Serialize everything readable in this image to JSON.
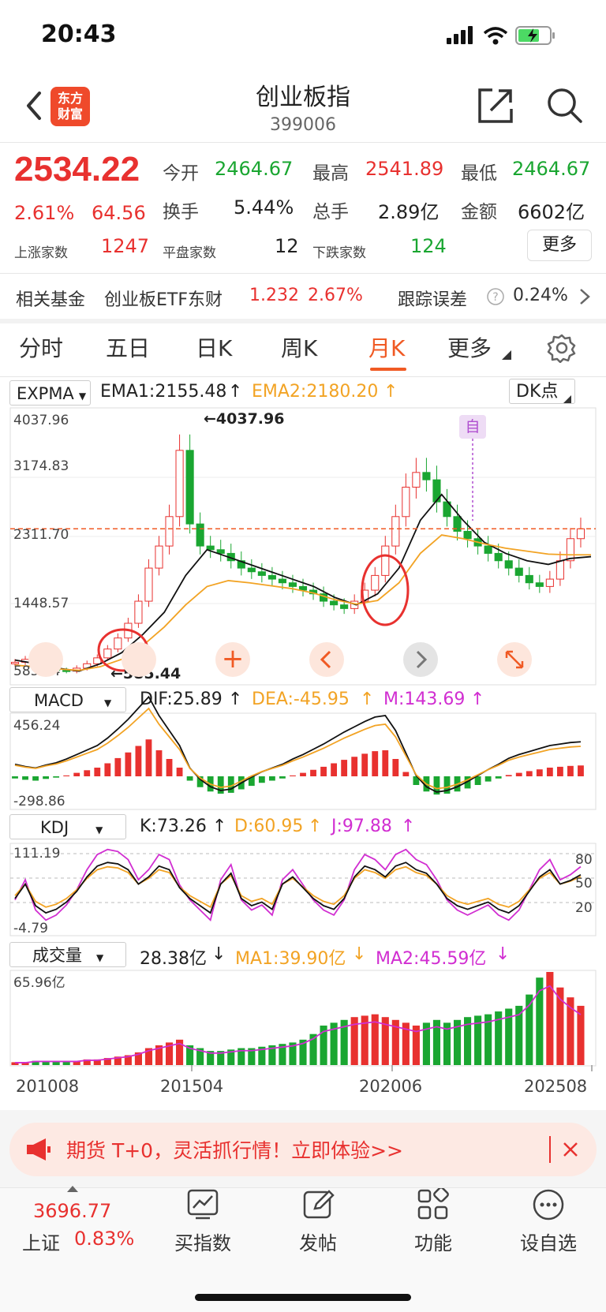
{
  "status_bar": {
    "time": "20:43"
  },
  "header": {
    "logo_line1": "东方",
    "logo_line2": "财富",
    "title": "创业板指",
    "code": "399006"
  },
  "quote": {
    "price": "2534.22",
    "change_pct": "2.61%",
    "change": "64.56",
    "open_label": "今开",
    "open": "2464.67",
    "high_label": "最高",
    "high": "2541.89",
    "low_label": "最低",
    "low": "2464.67",
    "turnover_label": "换手",
    "turnover": "5.44%",
    "volume_label": "总手",
    "volume": "2.89亿",
    "amount_label": "金额",
    "amount": "6602亿",
    "up_label": "上涨家数",
    "up_count": "1247",
    "flat_label": "平盘家数",
    "flat_count": "12",
    "down_label": "下跌家数",
    "down_count": "124",
    "more_button": "更多"
  },
  "fund_row": {
    "label": "相关基金",
    "fund_name": "创业板ETF东财",
    "fund_price": "1.232",
    "fund_pct": "2.67%",
    "tracking_label": "跟踪误差",
    "tracking_value": "0.24%"
  },
  "tabs": [
    "分时",
    "五日",
    "日K",
    "周K",
    "月K",
    "更多"
  ],
  "active_tab": "月K",
  "main_chart": {
    "indicator": "EXPMA",
    "ema1": "EMA1:2155.48",
    "ema2": "EMA2:2180.20",
    "dk_button": "DK点",
    "y_labels": [
      "4037.96",
      "3174.83",
      "2311.70",
      "1448.57",
      "585.44"
    ],
    "max_annotation": "4037.96",
    "min_annotation": "585.44",
    "self_tag": "自",
    "current_price_line": 2534.22
  },
  "macd": {
    "indicator": "MACD",
    "dif": "DIF:25.89",
    "dea": "DEA:-45.95",
    "m": "M:143.69",
    "y_top": "456.24",
    "y_bottom": "-298.86"
  },
  "kdj": {
    "indicator": "KDJ",
    "k": "K:73.26",
    "d": "D:60.95",
    "j": "J:97.88",
    "y_top": "111.19",
    "y_bottom": "-4.79",
    "levels": [
      "80",
      "50",
      "20"
    ]
  },
  "volume": {
    "indicator": "成交量",
    "value": "28.38亿",
    "ma1": "MA1:39.90亿",
    "ma2": "MA2:45.59亿",
    "y_top": "65.96亿"
  },
  "x_axis": [
    "201008",
    "201504",
    "202006",
    "202508"
  ],
  "chart_data": {
    "type": "candlestick",
    "series": [
      {
        "name": "EMA1",
        "values_approx": [
          750,
          700,
          640,
          600,
          700,
          850,
          1100,
          1400,
          1900,
          2250,
          2150,
          2050,
          1950,
          1850,
          1750,
          1600,
          1500,
          1650,
          2000,
          2650,
          3000,
          2650,
          2350,
          2200,
          2100,
          2050,
          2130,
          2155.48
        ]
      },
      {
        "name": "EMA2",
        "values_approx": [
          680,
          660,
          630,
          610,
          660,
          760,
          950,
          1200,
          1500,
          1750,
          1830,
          1800,
          1760,
          1720,
          1660,
          1570,
          1510,
          1560,
          1800,
          2200,
          2450,
          2400,
          2330,
          2270,
          2230,
          2190,
          2180,
          2180.2
        ]
      }
    ],
    "max": 4037.96,
    "min": 585.44,
    "ylim": [
      585.44,
      4037.96
    ]
  },
  "banner": {
    "text": "期货 T+0，灵活抓行情！立即体验>>"
  },
  "bottom_nav": {
    "index_value": "3696.77",
    "index_name": "上证",
    "index_pct": "0.83%",
    "items": [
      "买指数",
      "发帖",
      "功能",
      "设自选"
    ]
  }
}
